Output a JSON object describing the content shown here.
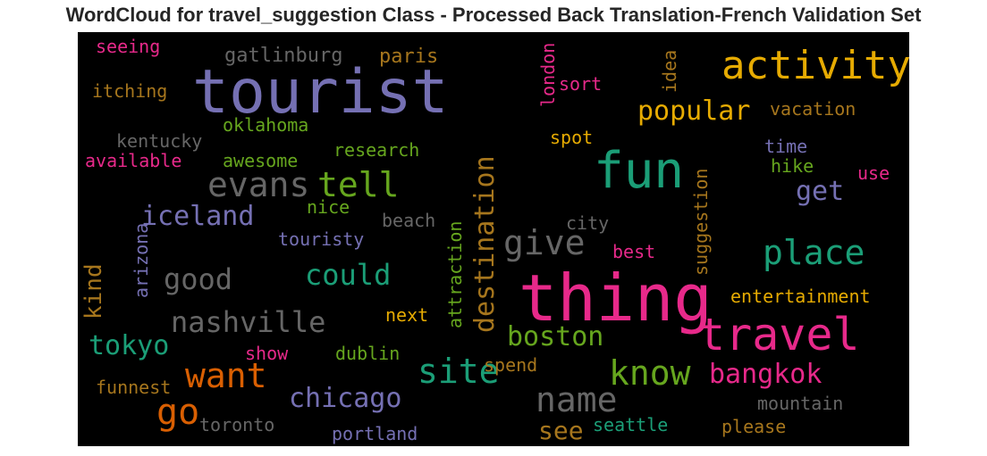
{
  "chart_data": {
    "type": "wordcloud",
    "title": "WordCloud for travel_suggestion Class - Processed Back Translation-French Validation Set",
    "background": "#000000",
    "palette": [
      "#7570b3",
      "#e7298a",
      "#1b9e77",
      "#66a61e",
      "#e6ab02",
      "#a6761d",
      "#666666",
      "#d95f02"
    ],
    "words": [
      {
        "text": "tourist",
        "color": "#7570b3",
        "orientation": "horizontal"
      },
      {
        "text": "thing",
        "color": "#e7298a",
        "orientation": "horizontal"
      },
      {
        "text": "activity",
        "color": "#e6ab02",
        "orientation": "horizontal"
      },
      {
        "text": "fun",
        "color": "#1b9e77",
        "orientation": "horizontal"
      },
      {
        "text": "travel",
        "color": "#e7298a",
        "orientation": "horizontal"
      },
      {
        "text": "place",
        "color": "#1b9e77",
        "orientation": "horizontal"
      },
      {
        "text": "give",
        "color": "#666666",
        "orientation": "horizontal"
      },
      {
        "text": "tell",
        "color": "#66a61e",
        "orientation": "horizontal"
      },
      {
        "text": "evans",
        "color": "#666666",
        "orientation": "horizontal"
      },
      {
        "text": "go",
        "color": "#d95f02",
        "orientation": "horizontal"
      },
      {
        "text": "want",
        "color": "#d95f02",
        "orientation": "horizontal"
      },
      {
        "text": "site",
        "color": "#1b9e77",
        "orientation": "horizontal"
      },
      {
        "text": "know",
        "color": "#66a61e",
        "orientation": "horizontal"
      },
      {
        "text": "name",
        "color": "#666666",
        "orientation": "horizontal"
      },
      {
        "text": "destination",
        "color": "#a6761d",
        "orientation": "vertical"
      },
      {
        "text": "could",
        "color": "#1b9e77",
        "orientation": "horizontal"
      },
      {
        "text": "good",
        "color": "#666666",
        "orientation": "horizontal"
      },
      {
        "text": "nashville",
        "color": "#666666",
        "orientation": "horizontal"
      },
      {
        "text": "iceland",
        "color": "#7570b3",
        "orientation": "horizontal"
      },
      {
        "text": "chicago",
        "color": "#7570b3",
        "orientation": "horizontal"
      },
      {
        "text": "boston",
        "color": "#66a61e",
        "orientation": "horizontal"
      },
      {
        "text": "bangkok",
        "color": "#e7298a",
        "orientation": "horizontal"
      },
      {
        "text": "popular",
        "color": "#e6ab02",
        "orientation": "horizontal"
      },
      {
        "text": "tokyo",
        "color": "#1b9e77",
        "orientation": "horizontal"
      },
      {
        "text": "kind",
        "color": "#a6761d",
        "orientation": "vertical"
      },
      {
        "text": "get",
        "color": "#7570b3",
        "orientation": "horizontal"
      },
      {
        "text": "see",
        "color": "#a6761d",
        "orientation": "horizontal"
      },
      {
        "text": "gatlinburg",
        "color": "#666666",
        "orientation": "horizontal"
      },
      {
        "text": "paris",
        "color": "#a6761d",
        "orientation": "horizontal"
      },
      {
        "text": "seeing",
        "color": "#e7298a",
        "orientation": "horizontal"
      },
      {
        "text": "itching",
        "color": "#a6761d",
        "orientation": "horizontal"
      },
      {
        "text": "oklahoma",
        "color": "#66a61e",
        "orientation": "horizontal"
      },
      {
        "text": "kentucky",
        "color": "#666666",
        "orientation": "horizontal"
      },
      {
        "text": "available",
        "color": "#e7298a",
        "orientation": "horizontal"
      },
      {
        "text": "awesome",
        "color": "#66a61e",
        "orientation": "horizontal"
      },
      {
        "text": "research",
        "color": "#66a61e",
        "orientation": "horizontal"
      },
      {
        "text": "nice",
        "color": "#66a61e",
        "orientation": "horizontal"
      },
      {
        "text": "touristy",
        "color": "#7570b3",
        "orientation": "horizontal"
      },
      {
        "text": "beach",
        "color": "#666666",
        "orientation": "horizontal"
      },
      {
        "text": "city",
        "color": "#666666",
        "orientation": "horizontal"
      },
      {
        "text": "arizona",
        "color": "#7570b3",
        "orientation": "vertical"
      },
      {
        "text": "attraction",
        "color": "#66a61e",
        "orientation": "vertical"
      },
      {
        "text": "suggestion",
        "color": "#a6761d",
        "orientation": "vertical"
      },
      {
        "text": "london",
        "color": "#e7298a",
        "orientation": "vertical"
      },
      {
        "text": "idea",
        "color": "#a6761d",
        "orientation": "vertical"
      },
      {
        "text": "sort",
        "color": "#e7298a",
        "orientation": "horizontal"
      },
      {
        "text": "vacation",
        "color": "#a6761d",
        "orientation": "horizontal"
      },
      {
        "text": "spot",
        "color": "#e6ab02",
        "orientation": "horizontal"
      },
      {
        "text": "time",
        "color": "#7570b3",
        "orientation": "horizontal"
      },
      {
        "text": "hike",
        "color": "#66a61e",
        "orientation": "horizontal"
      },
      {
        "text": "use",
        "color": "#e7298a",
        "orientation": "horizontal"
      },
      {
        "text": "best",
        "color": "#e7298a",
        "orientation": "horizontal"
      },
      {
        "text": "entertainment",
        "color": "#e6ab02",
        "orientation": "horizontal"
      },
      {
        "text": "next",
        "color": "#e6ab02",
        "orientation": "horizontal"
      },
      {
        "text": "show",
        "color": "#e7298a",
        "orientation": "horizontal"
      },
      {
        "text": "dublin",
        "color": "#66a61e",
        "orientation": "horizontal"
      },
      {
        "text": "spend",
        "color": "#a6761d",
        "orientation": "horizontal"
      },
      {
        "text": "funnest",
        "color": "#a6761d",
        "orientation": "horizontal"
      },
      {
        "text": "toronto",
        "color": "#666666",
        "orientation": "horizontal"
      },
      {
        "text": "portland",
        "color": "#7570b3",
        "orientation": "horizontal"
      },
      {
        "text": "seattle",
        "color": "#1b9e77",
        "orientation": "horizontal"
      },
      {
        "text": "mountain",
        "color": "#666666",
        "orientation": "horizontal"
      },
      {
        "text": "please",
        "color": "#a6761d",
        "orientation": "horizontal"
      }
    ]
  }
}
